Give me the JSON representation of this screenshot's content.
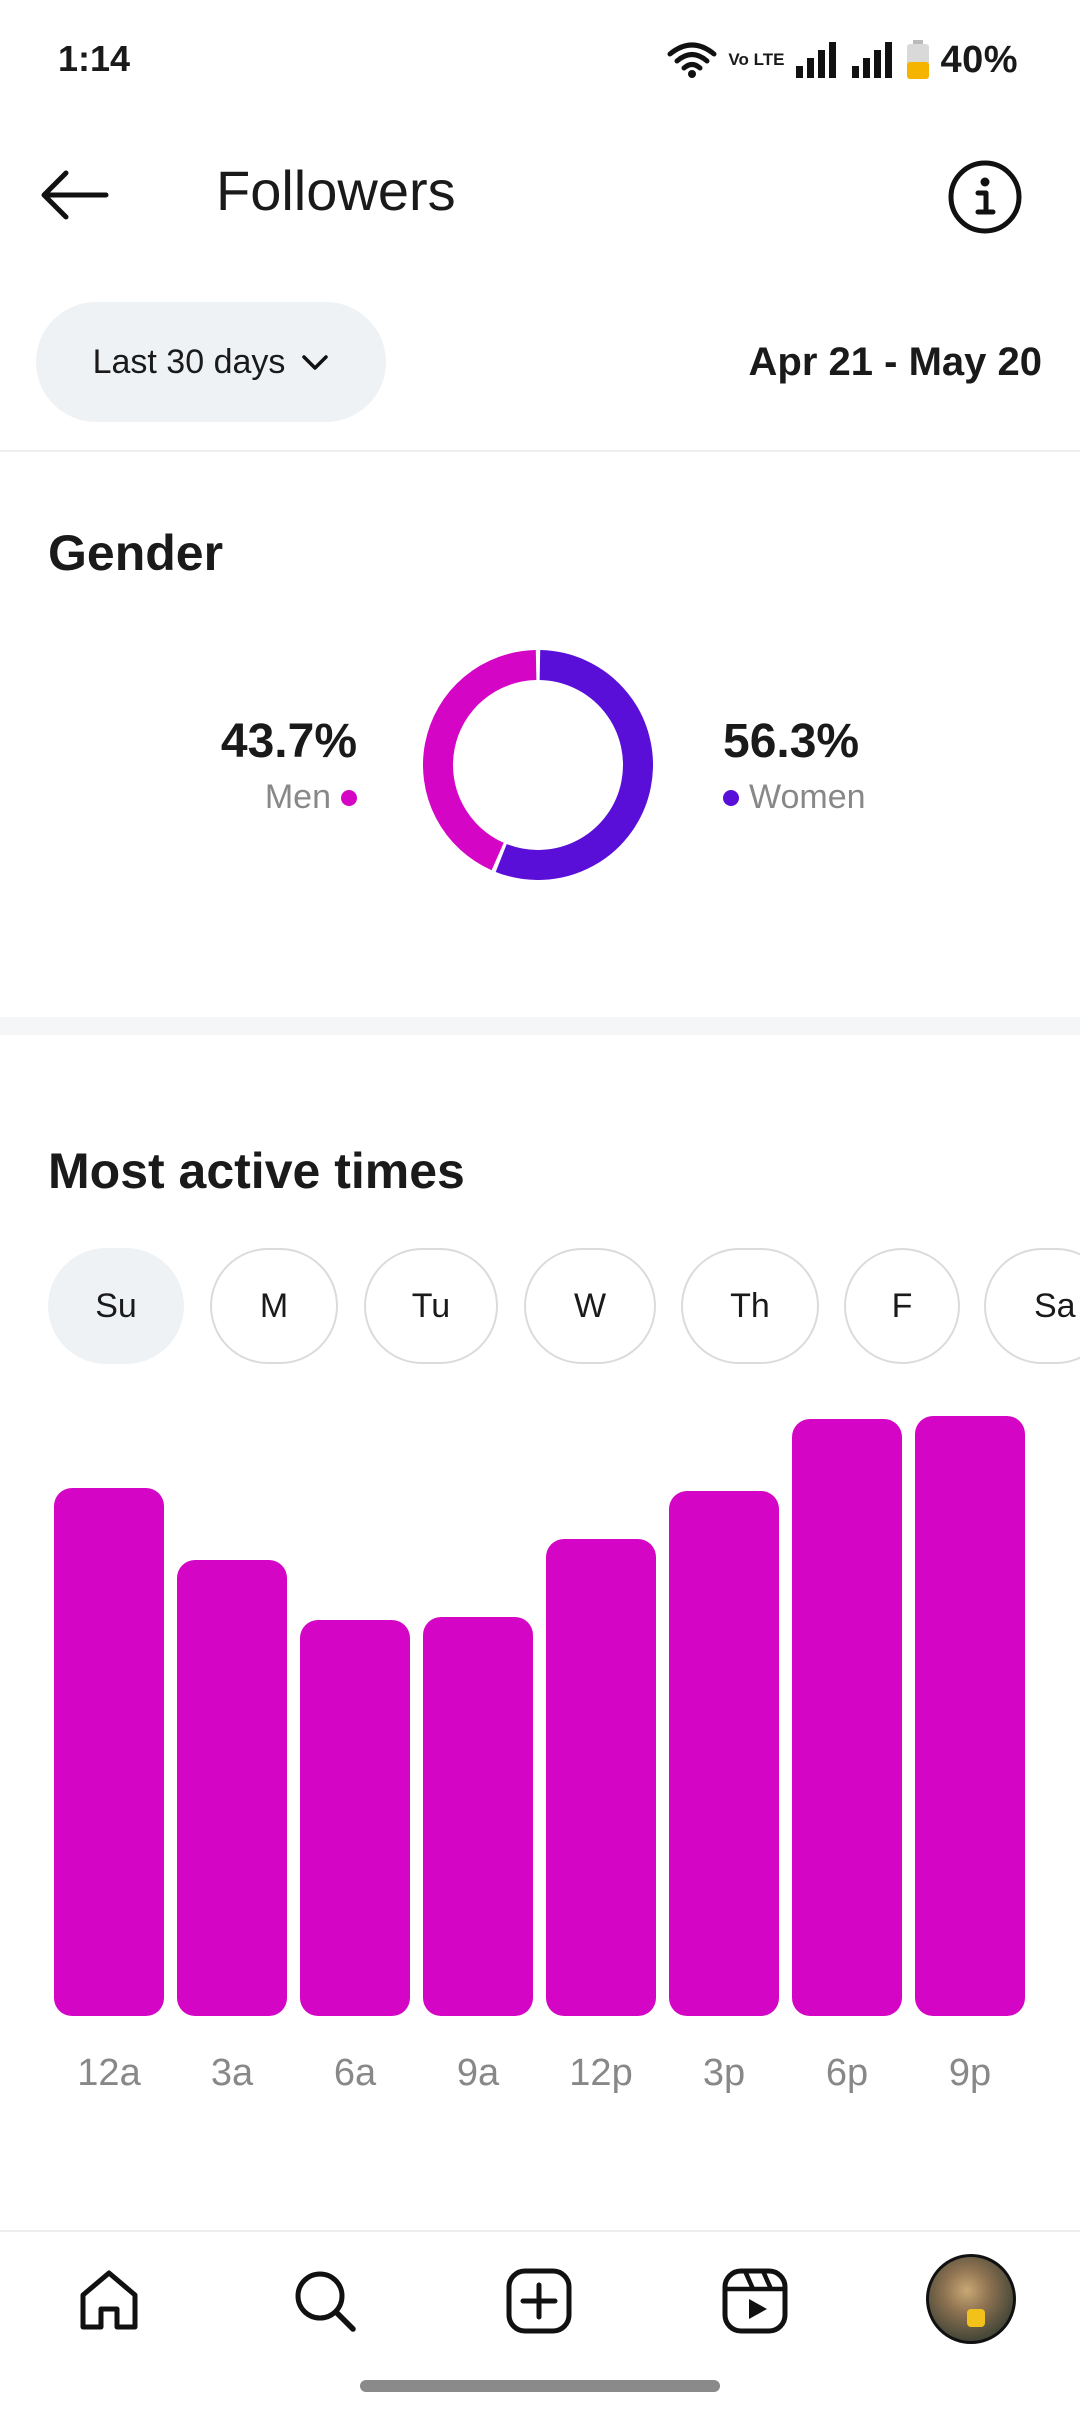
{
  "status_bar": {
    "time": "1:14",
    "network": "Vo LTE",
    "battery": "40%"
  },
  "header": {
    "title": "Followers"
  },
  "filter": {
    "range_label": "Last 30 days",
    "date_range": "Apr 21 - May 20"
  },
  "gender": {
    "title": "Gender",
    "men": {
      "pct": "43.7%",
      "label": "Men",
      "color": "#d505c5"
    },
    "women": {
      "pct": "56.3%",
      "label": "Women",
      "color": "#5a0fd8"
    }
  },
  "active_times": {
    "title": "Most active times",
    "days": [
      "Su",
      "M",
      "Tu",
      "W",
      "Th",
      "F",
      "Sa"
    ],
    "selected_day": "Su"
  },
  "chart_data": [
    {
      "type": "pie",
      "categories": [
        "Men",
        "Women"
      ],
      "values": [
        43.7,
        56.3
      ],
      "colors": [
        "#d505c5",
        "#5a0fd8"
      ],
      "donut": true
    },
    {
      "type": "bar",
      "categories": [
        "12a",
        "3a",
        "6a",
        "9a",
        "12p",
        "3p",
        "6p",
        "9p"
      ],
      "values": [
        88,
        76,
        66,
        66.5,
        79.5,
        87.5,
        99.5,
        100
      ],
      "ylim": [
        0,
        100
      ],
      "color": "#d505c5"
    }
  ],
  "nav": {
    "icons": [
      "home-icon",
      "search-icon",
      "create-icon",
      "reels-icon",
      "profile-avatar"
    ]
  }
}
